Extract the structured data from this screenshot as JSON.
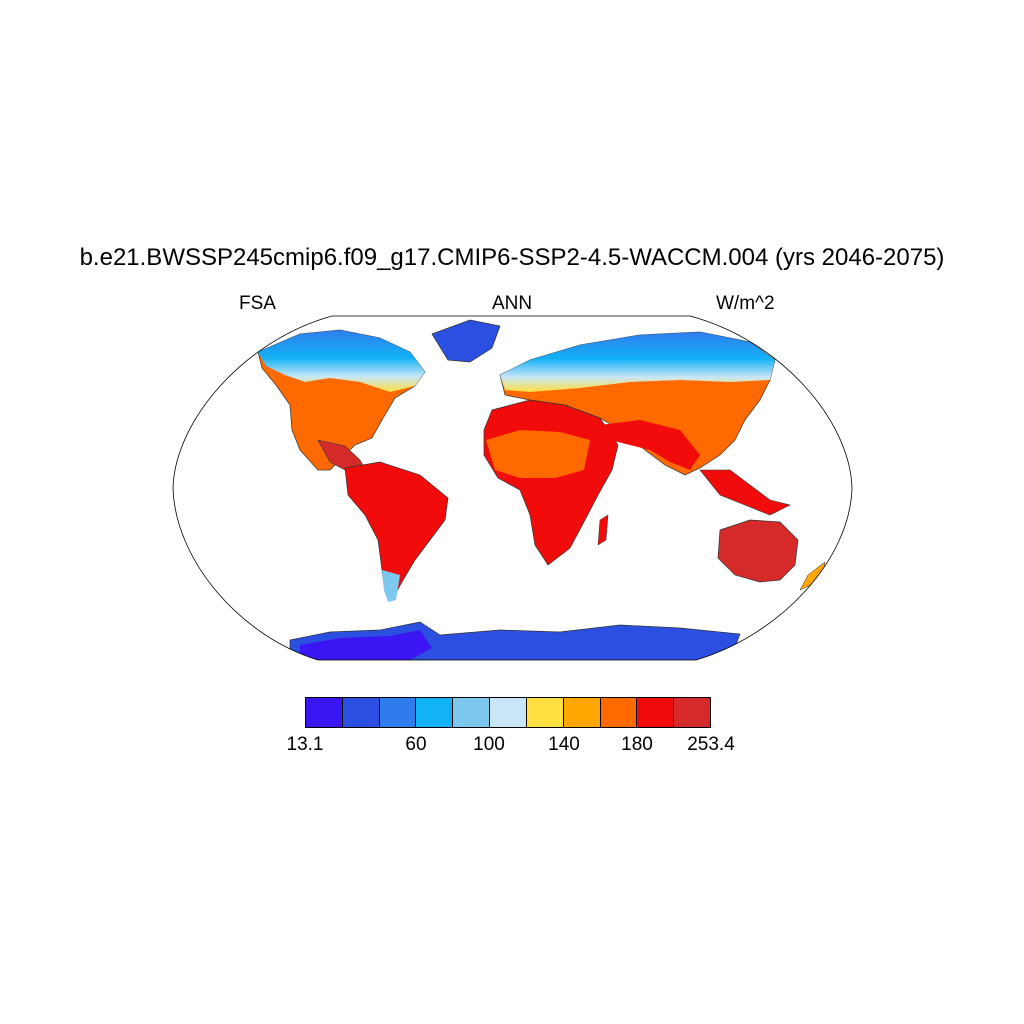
{
  "title": "b.e21.BWSSP245cmip6.f09_g17.CMIP6-SSP2-4.5-WACCM.004 (yrs 2046-2075)",
  "left_label": "FSA",
  "center_label": "ANN",
  "right_label": "W/m^2",
  "colorbar": {
    "colors": [
      "#3b16f2",
      "#2b4fe0",
      "#2f7ded",
      "#12b2f7",
      "#7cc8ef",
      "#c8e6f8",
      "#ffe040",
      "#ffa600",
      "#ff6a00",
      "#f20b0b",
      "#d62a2a"
    ],
    "labels": [
      "13.1",
      "60",
      "100",
      "140",
      "180",
      "253.4"
    ]
  }
}
